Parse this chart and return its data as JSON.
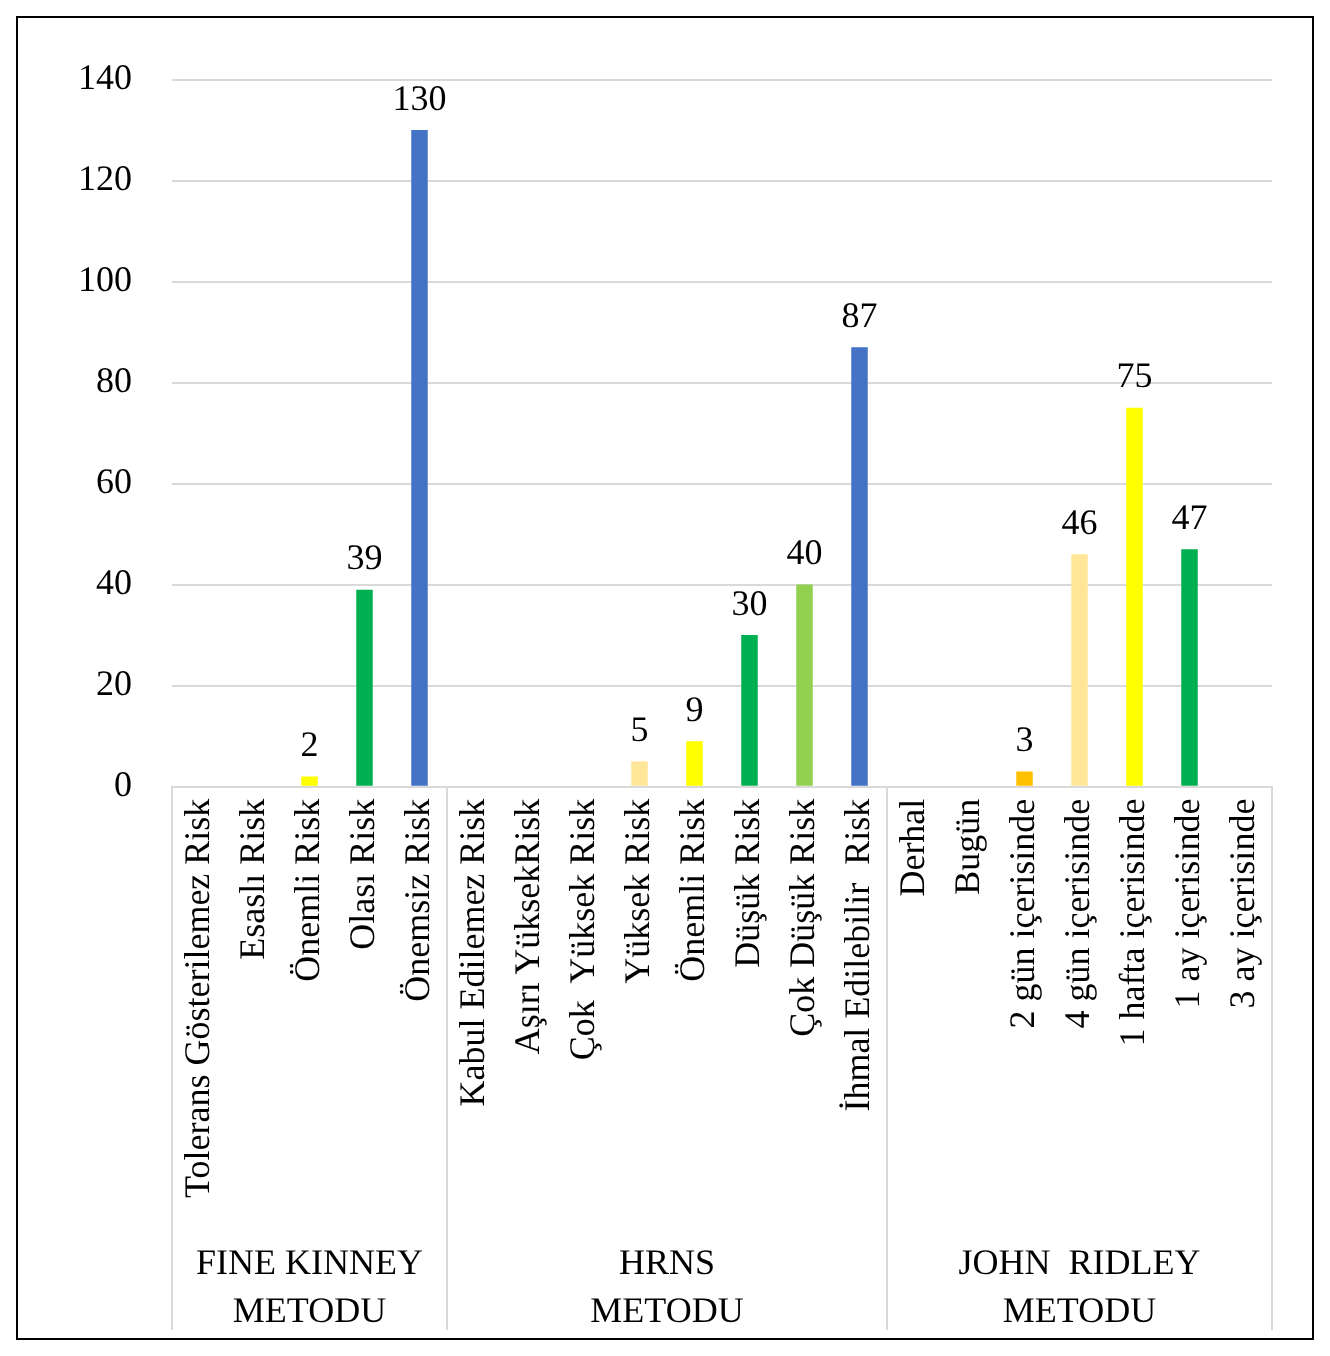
{
  "chart_data": {
    "type": "bar",
    "categories": [
      "Tolerans Gösterilemez Risk",
      "Esaslı Risk",
      "Önemli Risk",
      "Olası Risk",
      "Önemsiz Risk",
      "Kabul Edilemez Risk",
      "Aşırı YüksekRisk",
      "Çok  Yüksek Risk",
      "Yüksek Risk",
      "Önemli Risk",
      "Düşük Risk",
      "Çok Düşük Risk",
      "İhmal Edilebilir  Risk",
      "Derhal",
      "Bugün",
      "2 gün içerisinde",
      "4 gün içerisinde",
      "1 hafta içerisinde",
      "1 ay içerisinde",
      "3 ay içerisinde"
    ],
    "values": [
      null,
      null,
      2,
      39,
      130,
      null,
      null,
      null,
      5,
      9,
      30,
      40,
      87,
      null,
      null,
      3,
      46,
      75,
      47,
      null
    ],
    "colors": [
      "#c00000",
      "#ff0000",
      "#ffff00",
      "#00b050",
      "#4472c4",
      "#c00000",
      "#ff0000",
      "#ffc000",
      "#ffe699",
      "#ffff00",
      "#00b050",
      "#92d050",
      "#4472c4",
      "#c00000",
      "#ff0000",
      "#ffc000",
      "#ffe699",
      "#ffff00",
      "#00b050",
      "#92d050"
    ],
    "value_labels": [
      null,
      null,
      "2",
      "39",
      "130",
      null,
      null,
      null,
      "5",
      "9",
      "30",
      "40",
      "87",
      null,
      null,
      "3",
      "46",
      "75",
      "47",
      null
    ],
    "annotations": [
      "FINE KINNEY METODU",
      "HRNS METODU",
      "JOHN  RIDLEY METODU"
    ],
    "ylim": [
      0,
      140
    ],
    "yticks": [
      0,
      20,
      40,
      60,
      80,
      100,
      120,
      140
    ],
    "grid": "y",
    "legend": false
  }
}
